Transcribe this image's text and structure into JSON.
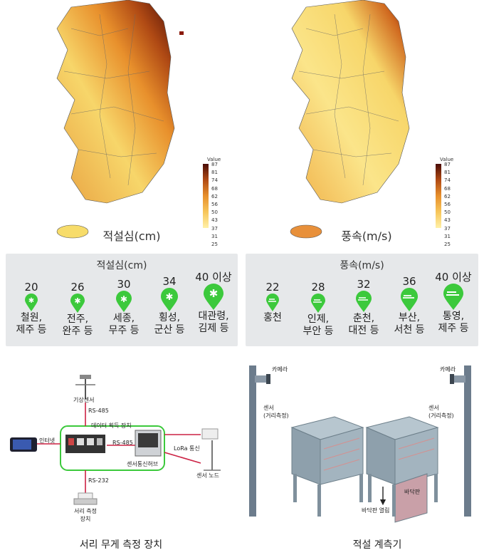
{
  "maps": [
    {
      "title": "적설심(cm)"
    },
    {
      "title": "풍속(m/s)"
    }
  ],
  "legend": {
    "title": "Value",
    "ticks": [
      "87",
      "81",
      "74",
      "68",
      "62",
      "56",
      "50",
      "43",
      "37",
      "31",
      "25"
    ],
    "colors": [
      "#fff1a8",
      "#f7c65a",
      "#e8902c",
      "#b04a14",
      "#4a0c06"
    ]
  },
  "snow_panel": {
    "title": "적설심(cm)",
    "items": [
      {
        "value": "20",
        "text": "철원,\n제주 등"
      },
      {
        "value": "26",
        "text": "전주,\n완주 등"
      },
      {
        "value": "30",
        "text": "세종,\n무주 등"
      },
      {
        "value": "34",
        "text": "횡성,\n군산 등"
      },
      {
        "value": "40 이상",
        "text": "대관령,\n김제 등"
      }
    ]
  },
  "wind_panel": {
    "title": "풍속(m/s)",
    "items": [
      {
        "value": "22",
        "text": "홍천"
      },
      {
        "value": "28",
        "text": "인제,\n부안 등"
      },
      {
        "value": "32",
        "text": "춘천,\n대전 등"
      },
      {
        "value": "36",
        "text": "부산,\n서천 등"
      },
      {
        "value": "40 이상",
        "text": "통영,\n제주 등"
      }
    ]
  },
  "device_diagram": {
    "weather_sensor": "기상센서",
    "rs485_vertical": "RS-485",
    "data_acquisition": "데이터 획득 장치",
    "internet": "인터넷",
    "rs485_horizontal": "RS-485",
    "sensor_hub": "센서통신허브",
    "lora": "LoRa 통신",
    "sensor_node": "센서 노드",
    "rs232": "RS-232",
    "frost_device": "서리 측정\n장치",
    "caption": "서리 무게 측정 장치"
  },
  "snow_gauge": {
    "camera_left": "카메라",
    "camera_right": "카메라",
    "sensor_left": "센서\n(거리측정)",
    "sensor_right": "센서\n(거리측정)",
    "floor_open": "바닥판 열림",
    "floor_plate": "바닥판",
    "caption": "적설 계측기"
  },
  "accent_green": "#3cc93c"
}
